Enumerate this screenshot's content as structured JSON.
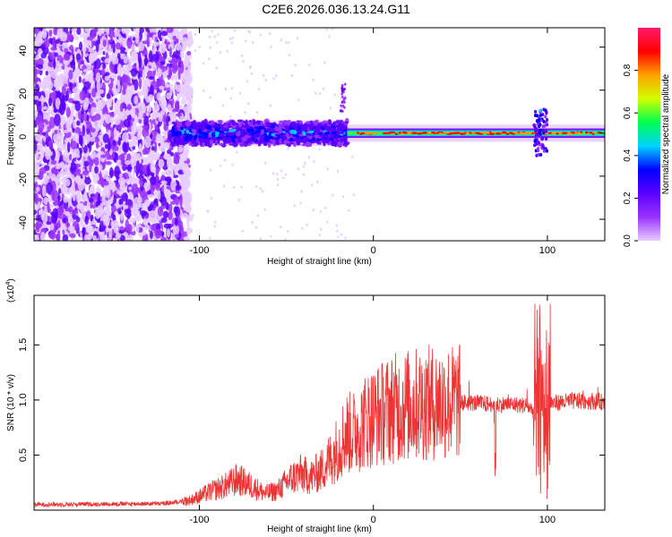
{
  "title": "C2E6.2026.036.13.24.G11",
  "chart_data": [
    {
      "type": "heatmap",
      "title": "C2E6.2026.036.13.24.G11",
      "xlabel": "Height of straight line (km)",
      "ylabel": "Frequency (Hz)",
      "xlim": [
        -195,
        133
      ],
      "ylim": [
        -50,
        49
      ],
      "xticks": [
        -100,
        0,
        100
      ],
      "yticks": [
        -40,
        -20,
        0,
        20,
        40
      ],
      "colorbar": {
        "label": "Normalized spectral amplitude",
        "range": [
          0,
          1
        ],
        "ticks": [
          0.0,
          0.2,
          0.4,
          0.6,
          0.8
        ],
        "colormap": [
          "#e8ccff",
          "#9a33ff",
          "#5a00ff",
          "#0000ff",
          "#00d2ff",
          "#00ff50",
          "#d2ff00",
          "#ffa000",
          "#ff0000",
          "#ff1a6a"
        ]
      },
      "regions": [
        {
          "x_range": [
            -195,
            -105
          ],
          "description_level": 0.2,
          "freq_spread": [
            -50,
            49
          ]
        },
        {
          "x_range": [
            -115,
            -15
          ],
          "description_level": 0.4,
          "freq_spread": [
            -6,
            6
          ]
        },
        {
          "x_range": [
            -15,
            133
          ],
          "description_level": 0.9,
          "freq_spread": [
            -1,
            1
          ]
        }
      ]
    },
    {
      "type": "line",
      "xlabel": "Height of straight line (km)",
      "ylabel": "SNR (10 * v/v)",
      "y_multiplier": "(x10",
      "y_multiplier_exp": "4",
      "xlim": [
        -195,
        133
      ],
      "ylim": [
        0,
        1.95
      ],
      "xticks": [
        -100,
        0,
        100
      ],
      "yticks": [
        0.5,
        1.0,
        1.5
      ],
      "ytick_labels": [
        "0.5",
        "1.0",
        "1.5"
      ],
      "color": "#ee3333",
      "envelope": {
        "x": [
          -195,
          -120,
          -105,
          -95,
          -85,
          -78,
          -70,
          -62,
          -55,
          -48,
          -42,
          -36,
          -30,
          -24,
          -20,
          -16,
          -12,
          -8,
          -4,
          0,
          5,
          10,
          20,
          30,
          40,
          50,
          60,
          70,
          80,
          88,
          92,
          95,
          98,
          100,
          103,
          108,
          115,
          125,
          133
        ],
        "y": [
          0.05,
          0.06,
          0.09,
          0.16,
          0.22,
          0.28,
          0.22,
          0.15,
          0.18,
          0.28,
          0.33,
          0.3,
          0.36,
          0.48,
          0.58,
          0.7,
          0.7,
          0.75,
          0.82,
          0.85,
          0.88,
          0.92,
          0.95,
          0.97,
          0.98,
          0.98,
          0.97,
          0.96,
          0.96,
          0.95,
          0.9,
          0.93,
          0.98,
          1.0,
          0.97,
          0.98,
          0.99,
          0.99,
          0.98
        ]
      },
      "features": [
        {
          "x": 70,
          "y_min": 0.25,
          "y_max": 1.0
        },
        {
          "x": 97,
          "y_min": 0.1,
          "y_max": 1.9
        }
      ]
    }
  ]
}
